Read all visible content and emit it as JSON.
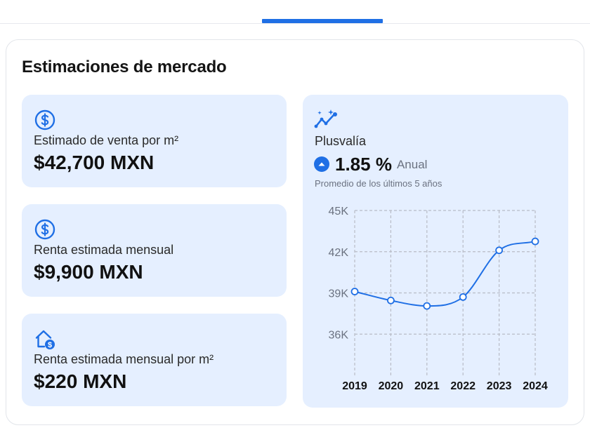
{
  "colors": {
    "accent": "#1f6fe5",
    "card_bg": "#e5efff",
    "grid": "#b8bcc6",
    "muted_text": "#6b7280"
  },
  "title": "Estimaciones de mercado",
  "stats": [
    {
      "icon": "dollar-circle-icon",
      "label": "Estimado de venta por m²",
      "value": "$42,700 MXN"
    },
    {
      "icon": "dollar-circle-icon",
      "label": "Renta estimada mensual",
      "value": "$9,900 MXN"
    },
    {
      "icon": "house-dollar-icon",
      "label": "Renta estimada mensual por m²",
      "value": "$220 MXN"
    }
  ],
  "plusvalia": {
    "icon": "trend-sparkle-icon",
    "label": "Plusvalía",
    "rate": "1.85 %",
    "period": "Anual",
    "note": "Promedio de los últimos 5 años"
  },
  "chart_data": {
    "type": "line",
    "x": [
      "2019",
      "2020",
      "2021",
      "2022",
      "2023",
      "2024"
    ],
    "series": [
      {
        "values": [
          39100,
          38450,
          38050,
          38700,
          42100,
          42750
        ]
      }
    ],
    "y_ticks": [
      36000,
      39000,
      42000,
      45000
    ],
    "y_tick_labels": [
      "36K",
      "39K",
      "42K",
      "45K"
    ],
    "ylim": [
      33000,
      45000
    ],
    "grid": true,
    "color": "#1f6fe5"
  }
}
